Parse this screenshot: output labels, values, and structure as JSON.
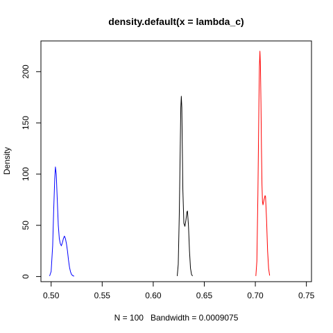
{
  "chart_data": {
    "type": "line",
    "title": "density.default(x = lambda_c)",
    "xlabel": "N = 100   Bandwidth = 0.0009075",
    "ylabel": "Density",
    "xlim": [
      0.49,
      0.755
    ],
    "ylim": [
      -5,
      230
    ],
    "x_ticks": [
      0.5,
      0.55,
      0.6,
      0.65,
      0.7,
      0.75
    ],
    "x_tick_labels": [
      "0.50",
      "0.55",
      "0.60",
      "0.65",
      "0.70",
      "0.75"
    ],
    "y_ticks": [
      0,
      50,
      100,
      150,
      200
    ],
    "y_tick_labels": [
      "0",
      "50",
      "100",
      "150",
      "200"
    ],
    "grid": false,
    "series": [
      {
        "color": "#0000ff",
        "x": [
          0.4985,
          0.5,
          0.5015,
          0.5025,
          0.5035,
          0.5042,
          0.505,
          0.506,
          0.507,
          0.508,
          0.509,
          0.51,
          0.511,
          0.512,
          0.513,
          0.514,
          0.515,
          0.516,
          0.517,
          0.518,
          0.519,
          0.52,
          0.521,
          0.5225
        ],
        "y": [
          0.5,
          5,
          30,
          65,
          95,
          107,
          100,
          75,
          50,
          37,
          32,
          30,
          33,
          37,
          39.5,
          37,
          32,
          25,
          16,
          9,
          4.5,
          2,
          1,
          0.3
        ]
      },
      {
        "color": "#000000",
        "x": [
          0.6235,
          0.6245,
          0.6255,
          0.6265,
          0.627,
          0.6275,
          0.628,
          0.6285,
          0.629,
          0.63,
          0.631,
          0.632,
          0.633,
          0.6335,
          0.6345,
          0.6355,
          0.6365,
          0.6375,
          0.6385
        ],
        "y": [
          0.5,
          12,
          60,
          130,
          165,
          176,
          165,
          125,
          85,
          52,
          49,
          55,
          63,
          64,
          50,
          25,
          8,
          2,
          0.5
        ]
      },
      {
        "color": "#ff0000",
        "x": [
          0.7005,
          0.7015,
          0.7025,
          0.7035,
          0.704,
          0.7045,
          0.705,
          0.7055,
          0.706,
          0.7065,
          0.707,
          0.7075,
          0.7085,
          0.7095,
          0.71,
          0.711,
          0.712,
          0.713,
          0.714
        ],
        "y": [
          0.5,
          15,
          80,
          170,
          205,
          220,
          205,
          170,
          125,
          90,
          73,
          70,
          75,
          79,
          78,
          55,
          25,
          8,
          1
        ]
      }
    ]
  }
}
